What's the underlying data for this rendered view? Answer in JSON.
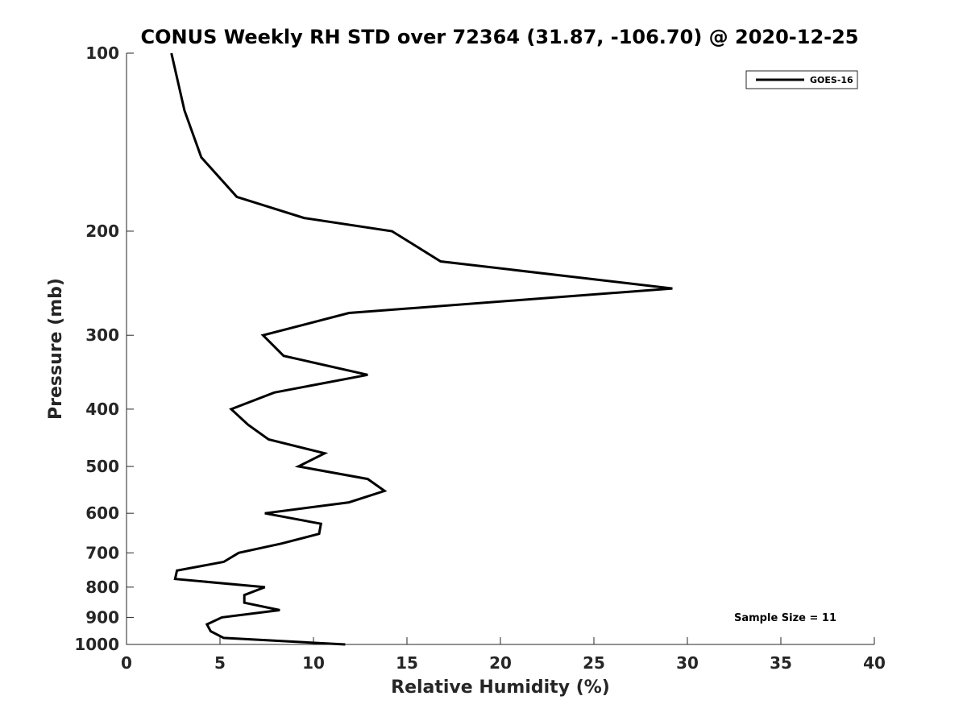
{
  "chart_data": {
    "type": "line",
    "title": "CONUS Weekly RH STD over 72364 (31.87, -106.70) @ 2020-12-25",
    "xlabel": "Relative Humidity (%)",
    "ylabel": "Pressure (mb)",
    "xlim": [
      0,
      40
    ],
    "ylim": [
      100,
      1000
    ],
    "yscale": "log-reversed",
    "x_ticks": [
      0,
      5,
      10,
      15,
      20,
      25,
      30,
      35,
      40
    ],
    "y_ticks": [
      100,
      200,
      300,
      400,
      500,
      600,
      700,
      800,
      900,
      1000
    ],
    "grid": false,
    "legend_position": "top-right",
    "annotation": "Sample Size = 11",
    "series": [
      {
        "name": "GOES-16",
        "color": "#000000",
        "points": [
          {
            "rh": 2.4,
            "p": 100
          },
          {
            "rh": 3.1,
            "p": 125
          },
          {
            "rh": 4.0,
            "p": 150
          },
          {
            "rh": 5.9,
            "p": 175
          },
          {
            "rh": 9.5,
            "p": 190
          },
          {
            "rh": 14.2,
            "p": 200
          },
          {
            "rh": 16.8,
            "p": 225
          },
          {
            "rh": 29.2,
            "p": 250
          },
          {
            "rh": 11.9,
            "p": 275
          },
          {
            "rh": 7.3,
            "p": 300
          },
          {
            "rh": 8.4,
            "p": 325
          },
          {
            "rh": 12.9,
            "p": 350
          },
          {
            "rh": 7.9,
            "p": 375
          },
          {
            "rh": 5.6,
            "p": 400
          },
          {
            "rh": 6.5,
            "p": 425
          },
          {
            "rh": 7.6,
            "p": 450
          },
          {
            "rh": 10.6,
            "p": 475
          },
          {
            "rh": 9.2,
            "p": 500
          },
          {
            "rh": 12.9,
            "p": 525
          },
          {
            "rh": 13.8,
            "p": 550
          },
          {
            "rh": 11.9,
            "p": 575
          },
          {
            "rh": 7.4,
            "p": 600
          },
          {
            "rh": 10.4,
            "p": 625
          },
          {
            "rh": 10.3,
            "p": 650
          },
          {
            "rh": 8.3,
            "p": 675
          },
          {
            "rh": 6.0,
            "p": 700
          },
          {
            "rh": 5.2,
            "p": 725
          },
          {
            "rh": 2.7,
            "p": 750
          },
          {
            "rh": 2.6,
            "p": 775
          },
          {
            "rh": 7.4,
            "p": 800
          },
          {
            "rh": 6.3,
            "p": 825
          },
          {
            "rh": 6.3,
            "p": 850
          },
          {
            "rh": 8.2,
            "p": 875
          },
          {
            "rh": 5.1,
            "p": 900
          },
          {
            "rh": 4.3,
            "p": 925
          },
          {
            "rh": 4.5,
            "p": 950
          },
          {
            "rh": 5.2,
            "p": 975
          },
          {
            "rh": 11.7,
            "p": 1000
          }
        ]
      }
    ]
  }
}
